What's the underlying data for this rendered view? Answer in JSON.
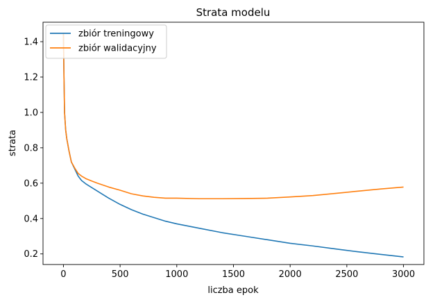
{
  "chart_data": {
    "type": "line",
    "title": "Strata modelu",
    "xlabel": "liczba epok",
    "ylabel": "strata",
    "xlim": [
      -180,
      3180
    ],
    "ylim": [
      0.14,
      1.51
    ],
    "xticks": [
      0,
      500,
      1000,
      1500,
      2000,
      2500,
      3000
    ],
    "xtick_labels": [
      "0",
      "500",
      "1000",
      "1500",
      "2000",
      "2500",
      "3000"
    ],
    "yticks": [
      0.2,
      0.4,
      0.6,
      0.8,
      1.0,
      1.2,
      1.4
    ],
    "ytick_labels": [
      "0.2",
      "0.4",
      "0.6",
      "0.8",
      "1.0",
      "1.2",
      "1.4"
    ],
    "grid": false,
    "legend_position": "top-left",
    "series": [
      {
        "name": "zbiór treningowy",
        "color": "#1f77b4",
        "x": [
          0,
          5,
          10,
          20,
          30,
          50,
          70,
          100,
          130,
          160,
          200,
          250,
          300,
          400,
          500,
          600,
          700,
          800,
          900,
          1000,
          1200,
          1400,
          1600,
          1800,
          2000,
          2200,
          2400,
          2600,
          2800,
          3000
        ],
        "y": [
          1.45,
          1.2,
          1.0,
          0.9,
          0.85,
          0.78,
          0.72,
          0.68,
          0.64,
          0.615,
          0.595,
          0.575,
          0.555,
          0.515,
          0.48,
          0.45,
          0.425,
          0.405,
          0.385,
          0.37,
          0.345,
          0.32,
          0.3,
          0.28,
          0.26,
          0.245,
          0.228,
          0.212,
          0.197,
          0.183
        ]
      },
      {
        "name": "zbiór walidacyjny",
        "color": "#ff7f0e",
        "x": [
          0,
          5,
          10,
          20,
          30,
          50,
          70,
          100,
          130,
          160,
          200,
          250,
          300,
          400,
          500,
          600,
          700,
          800,
          900,
          1000,
          1200,
          1400,
          1600,
          1800,
          2000,
          2200,
          2400,
          2600,
          2800,
          3000
        ],
        "y": [
          1.45,
          1.2,
          1.0,
          0.9,
          0.85,
          0.78,
          0.72,
          0.685,
          0.655,
          0.64,
          0.625,
          0.612,
          0.6,
          0.578,
          0.56,
          0.54,
          0.528,
          0.52,
          0.515,
          0.515,
          0.512,
          0.512,
          0.513,
          0.515,
          0.522,
          0.53,
          0.542,
          0.555,
          0.567,
          0.578
        ]
      }
    ]
  }
}
